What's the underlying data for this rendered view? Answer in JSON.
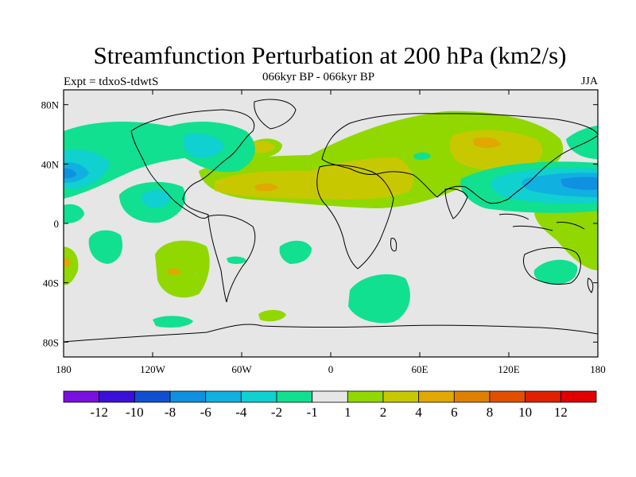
{
  "title": "Streamfunction Perturbation at 200 hPa (km2/s)",
  "subtitle": "066kyr BP - 066kyr BP",
  "left_label": "Expt = tdxoS-tdwtS",
  "right_label": "JJA",
  "map": {
    "lon_range": [
      -180,
      180
    ],
    "lat_range": [
      -90,
      90
    ],
    "lon_ticks": [
      "180",
      "120W",
      "60W",
      "0",
      "60E",
      "120E",
      "180"
    ],
    "lat_ticks": [
      "80N",
      "40N",
      "0",
      "40S",
      "80S"
    ],
    "background_color": "#e6e6e6"
  },
  "colorbar": {
    "colors": [
      "#7a10e0",
      "#3a10d8",
      "#1050d0",
      "#1090e0",
      "#10b0e0",
      "#10d0d0",
      "#10e090",
      "#e6e6e6",
      "#90d800",
      "#c8c800",
      "#e0a800",
      "#e08000",
      "#e05000",
      "#e02000",
      "#e00000"
    ],
    "labels": [
      "-12",
      "-10",
      "-8",
      "-6",
      "-4",
      "-2",
      "-1",
      "1",
      "2",
      "4",
      "6",
      "8",
      "10",
      "12"
    ]
  }
}
